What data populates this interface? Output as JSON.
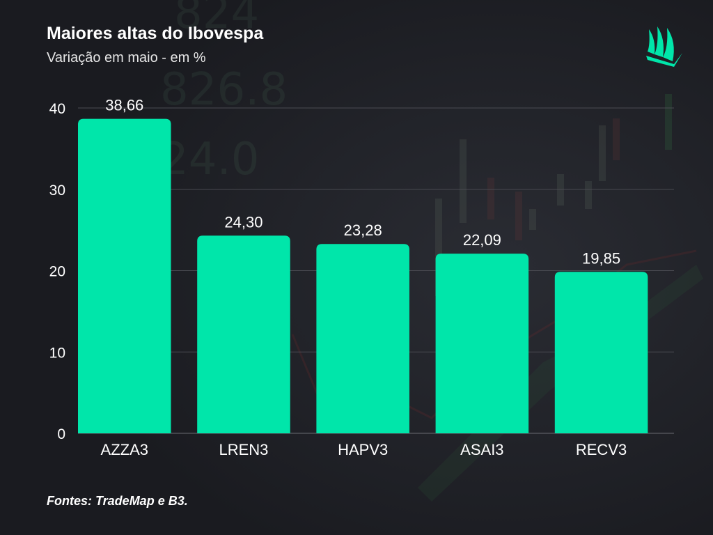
{
  "header": {
    "title": "Maiores altas do Ibovespa",
    "subtitle": "Variação em maio - em %"
  },
  "footer": {
    "source": "Fontes: TradeMap e B3."
  },
  "colors": {
    "background": "#1e1f24",
    "bar": "#00e6aa",
    "gridline": "#4a4b52",
    "text": "#ffffff"
  },
  "logo": {
    "icon": "book-pages-logo-icon"
  },
  "chart_data": {
    "type": "bar",
    "title": "Maiores altas do Ibovespa",
    "subtitle": "Variação em maio - em %",
    "categories": [
      "AZZA3",
      "LREN3",
      "HAPV3",
      "ASAI3",
      "RECV3"
    ],
    "values": [
      38.66,
      24.3,
      23.28,
      22.09,
      19.85
    ],
    "value_labels": [
      "38,66",
      "24,30",
      "23,28",
      "22,09",
      "19,85"
    ],
    "ylim": [
      0,
      40
    ],
    "yticks": [
      0,
      10,
      20,
      30,
      40
    ],
    "grid": true,
    "legend": "none",
    "xlabel": "",
    "ylabel": ""
  }
}
